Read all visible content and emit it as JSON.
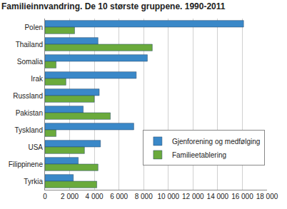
{
  "chart_data": {
    "type": "bar",
    "orientation": "horizontal",
    "title": "Familieinnvandring. De 10 største gruppene. 1990-2011",
    "categories": [
      "Polen",
      "Thailand",
      "Somalia",
      "Irak",
      "Russland",
      "Pakistan",
      "Tyskland",
      "USA",
      "Filippinene",
      "Tyrkia"
    ],
    "series": [
      {
        "name": "Gjenforening og medfølging",
        "color": "#3a88c8",
        "values": [
          16100,
          4300,
          8300,
          7400,
          4400,
          3100,
          7200,
          4500,
          2700,
          2300
        ]
      },
      {
        "name": "Familieetablering",
        "color": "#6aaa3c",
        "values": [
          2400,
          8700,
          900,
          1700,
          4000,
          5300,
          900,
          3200,
          4300,
          4200
        ]
      }
    ],
    "xlim": [
      0,
      18000
    ],
    "xticks": [
      0,
      {
        "value": 2000,
        "label": "2 000"
      },
      {
        "value": 4000,
        "label": "4 000"
      },
      {
        "value": 6000,
        "label": "6 000"
      },
      {
        "value": 8000,
        "label": "8 000"
      },
      {
        "value": 10000,
        "label": "10 000"
      },
      {
        "value": 12000,
        "label": "12 000"
      },
      {
        "value": 14000,
        "label": "14 000"
      },
      {
        "value": 16000,
        "label": "16 000"
      },
      {
        "value": 18000,
        "label": "18 000"
      }
    ],
    "grid": true,
    "legend": "bottom right"
  }
}
